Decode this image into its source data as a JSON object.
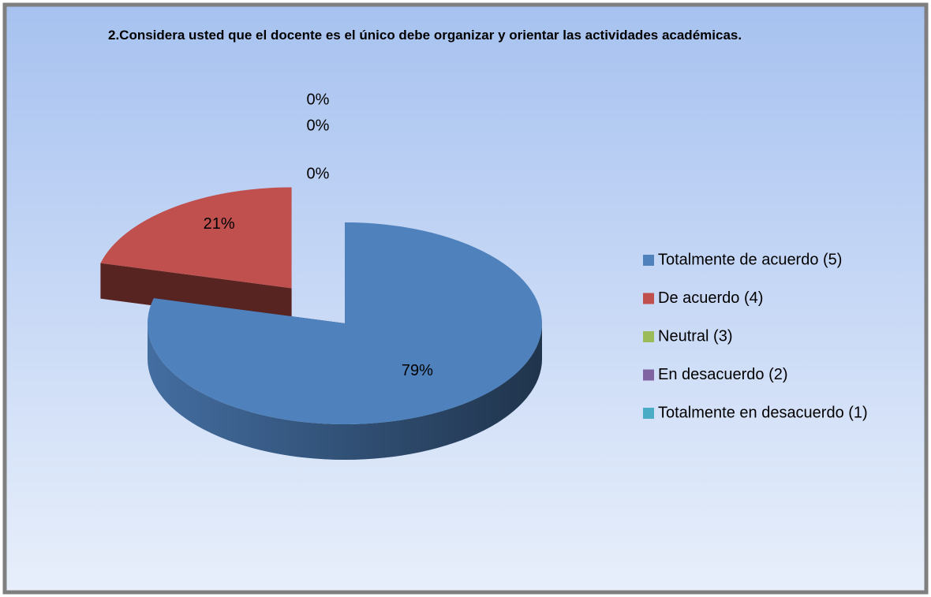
{
  "chart_data": {
    "type": "pie",
    "title": "2.Considera usted que el docente es el único debe organizar y orientar las actividades académicas.",
    "categories": [
      "Totalmente de acuerdo (5)",
      "De acuerdo (4)",
      "Neutral (3)",
      "En desacuerdo (2)",
      "Totalmente en desacuerdo (1)"
    ],
    "values": [
      79,
      21,
      0,
      0,
      0
    ],
    "value_labels": [
      "79%",
      "21%",
      "0%",
      "0%",
      "0%"
    ],
    "colors": [
      "#4f81bd",
      "#c0504d",
      "#9bbb59",
      "#8064a2",
      "#4bacc6"
    ],
    "legend": "right"
  }
}
